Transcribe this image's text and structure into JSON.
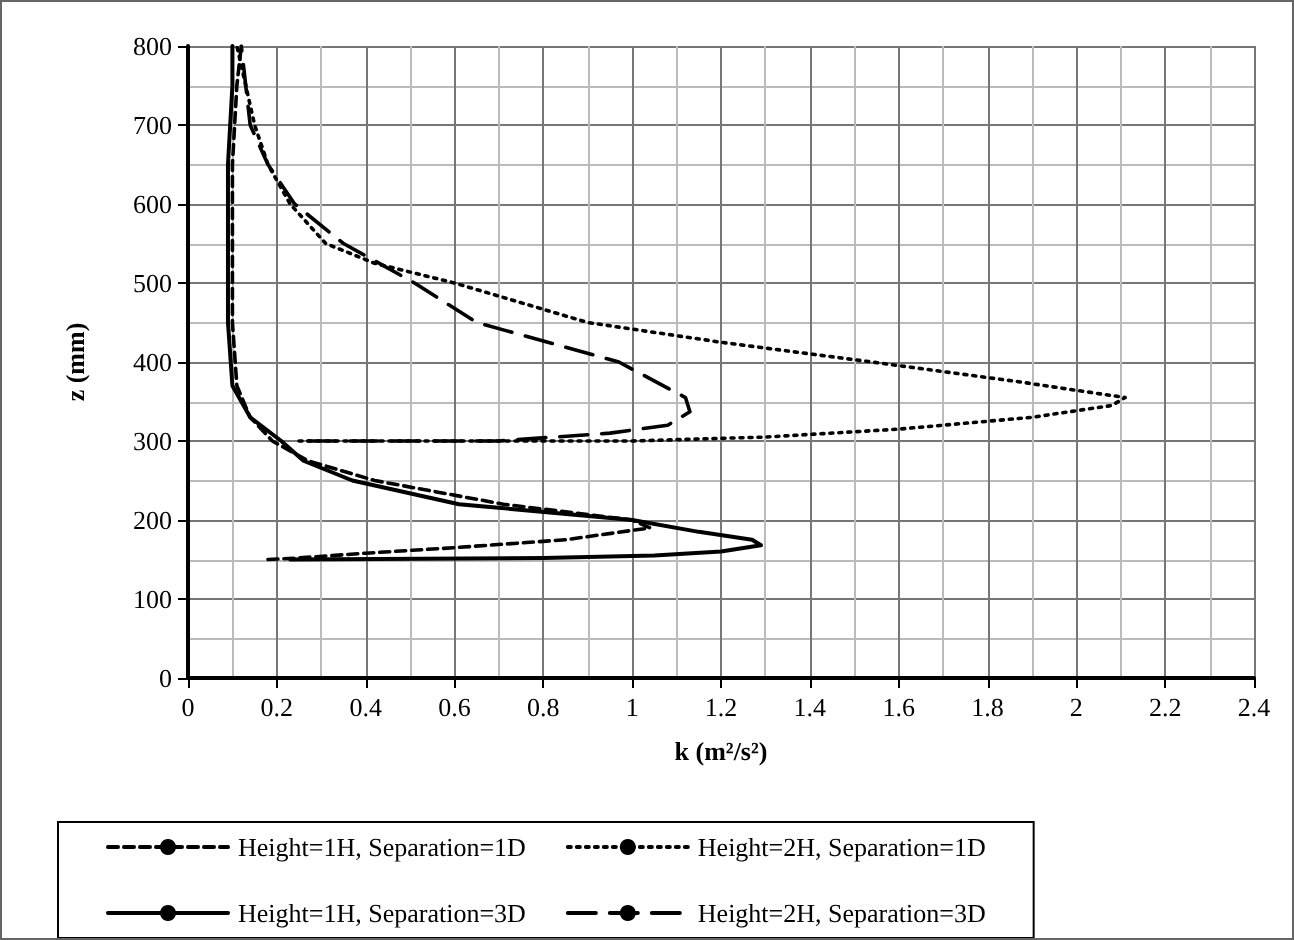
{
  "chart_data": {
    "type": "line",
    "xlabel": "k (m²/s²)",
    "ylabel": "z (mm)",
    "xlim": [
      0,
      2.4
    ],
    "xticks": [
      0,
      0.2,
      0.4,
      0.6,
      0.8,
      1,
      1.2,
      1.4,
      1.6,
      1.8,
      2,
      2.2,
      2.4
    ],
    "ylim": [
      0,
      800
    ],
    "yticks": [
      0,
      100,
      200,
      300,
      400,
      500,
      600,
      700,
      800
    ],
    "grid": true,
    "legend": "bottom",
    "marker": "none",
    "series": [
      {
        "name": "Height=1H, Separation=1D",
        "color": "#000000",
        "line_style": "dashed",
        "x": [
          0.18,
          0.25,
          0.4,
          0.6,
          0.85,
          1.04,
          1.0,
          0.71,
          0.42,
          0.27,
          0.19,
          0.14,
          0.11,
          0.1,
          0.1,
          0.1,
          0.11,
          0.12
        ],
        "values": [
          150,
          152,
          158,
          165,
          175,
          190,
          200,
          220,
          250,
          275,
          300,
          330,
          370,
          450,
          550,
          650,
          750,
          800
        ]
      },
      {
        "name": "Height=2H, Separation=1D",
        "color": "#000000",
        "line_style": "dotted",
        "x": [
          0.25,
          1.0,
          1.3,
          1.6,
          1.9,
          2.08,
          2.11,
          1.87,
          1.54,
          1.2,
          0.9,
          0.6,
          0.42,
          0.31,
          0.23,
          0.18,
          0.15,
          0.13,
          0.11
        ],
        "values": [
          300,
          300,
          305,
          315,
          330,
          345,
          355,
          375,
          400,
          425,
          450,
          500,
          525,
          550,
          600,
          650,
          700,
          750,
          800
        ]
      },
      {
        "name": "Height=1H, Separation=3D",
        "color": "#000000",
        "line_style": "solid",
        "x": [
          0.23,
          0.8,
          1.05,
          1.2,
          1.29,
          1.27,
          1.15,
          1.0,
          0.61,
          0.37,
          0.26,
          0.21,
          0.14,
          0.1,
          0.09,
          0.09,
          0.09,
          0.1,
          0.1
        ],
        "values": [
          150,
          152,
          155,
          160,
          168,
          175,
          185,
          200,
          220,
          250,
          275,
          300,
          330,
          370,
          450,
          550,
          650,
          750,
          800
        ]
      },
      {
        "name": "Height=2H, Separation=3D",
        "color": "#000000",
        "line_style": "dashed",
        "x": [
          0.27,
          0.7,
          0.95,
          1.08,
          1.13,
          1.12,
          0.97,
          0.65,
          0.51,
          0.35,
          0.24,
          0.18,
          0.14,
          0.13,
          0.12
        ],
        "values": [
          300,
          300,
          310,
          320,
          337,
          355,
          400,
          450,
          500,
          550,
          600,
          650,
          700,
          750,
          800
        ]
      }
    ]
  }
}
